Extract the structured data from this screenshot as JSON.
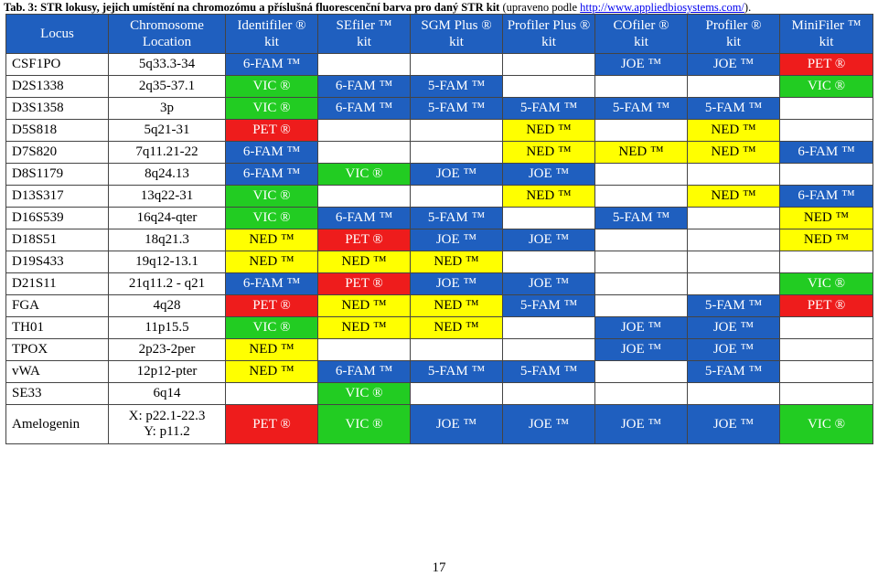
{
  "caption": {
    "bold": "Tab. 3: STR lokusy, jejich umístění na chromozómu a příslušná fluorescenční barva pro daný STR kit",
    "normal": " (upraveno podle ",
    "link": "http://www.appliedbiosystems.com/",
    "tail": ")."
  },
  "colors": {
    "FAM": "#1f5fbf",
    "JOE": "#1f5fbf",
    "VIC": "#22cc22",
    "NED": "#ffff00",
    "PET": "#ee1c1c",
    "header": "#1f5fbf"
  },
  "headers": {
    "locus": "Locus",
    "location": [
      "Chromosome",
      "Location"
    ],
    "kits": [
      [
        "Identifiler ®",
        "kit"
      ],
      [
        "SEfiler ™",
        "kit"
      ],
      [
        "SGM Plus ®",
        "kit"
      ],
      [
        "Profiler Plus ®",
        "kit"
      ],
      [
        "COfiler ®",
        "kit"
      ],
      [
        "Profiler ®",
        "kit"
      ],
      [
        "MiniFiler ™",
        "kit"
      ]
    ]
  },
  "rows": [
    {
      "locus": "CSF1PO",
      "location": [
        "5q33.3-34"
      ],
      "cells": [
        "6-FAM ™",
        "",
        "",
        "",
        "JOE ™",
        "JOE ™",
        "PET ®"
      ]
    },
    {
      "locus": "D2S1338",
      "location": [
        "2q35-37.1"
      ],
      "cells": [
        "VIC ®",
        "6-FAM ™",
        "5-FAM ™",
        "",
        "",
        "",
        "VIC ®"
      ]
    },
    {
      "locus": "D3S1358",
      "location": [
        "3p"
      ],
      "cells": [
        "VIC ®",
        "6-FAM ™",
        "5-FAM ™",
        "5-FAM ™",
        "5-FAM ™",
        "5-FAM ™",
        ""
      ]
    },
    {
      "locus": "D5S818",
      "location": [
        "5q21-31"
      ],
      "cells": [
        "PET ®",
        "",
        "",
        "NED ™",
        "",
        "NED ™",
        ""
      ]
    },
    {
      "locus": "D7S820",
      "location": [
        "7q11.21-22"
      ],
      "cells": [
        "6-FAM ™",
        "",
        "",
        "NED ™",
        "NED ™",
        "NED ™",
        "6-FAM ™"
      ]
    },
    {
      "locus": "D8S1179",
      "location": [
        "8q24.13"
      ],
      "cells": [
        "6-FAM ™",
        "VIC ®",
        "JOE ™",
        "JOE ™",
        "",
        "",
        ""
      ]
    },
    {
      "locus": "D13S317",
      "location": [
        "13q22-31"
      ],
      "cells": [
        "VIC ®",
        "",
        "",
        "NED ™",
        "",
        "NED ™",
        "6-FAM ™"
      ]
    },
    {
      "locus": "D16S539",
      "location": [
        "16q24-qter"
      ],
      "cells": [
        "VIC ®",
        "6-FAM ™",
        "5-FAM ™",
        "",
        "5-FAM ™",
        "",
        "NED ™"
      ]
    },
    {
      "locus": "D18S51",
      "location": [
        "18q21.3"
      ],
      "cells": [
        "NED ™",
        "PET ®",
        "JOE ™",
        "JOE ™",
        "",
        "",
        "NED ™"
      ]
    },
    {
      "locus": "D19S433",
      "location": [
        "19q12-13.1"
      ],
      "cells": [
        "NED ™",
        "NED ™",
        "NED ™",
        "",
        "",
        "",
        ""
      ]
    },
    {
      "locus": "D21S11",
      "location": [
        "21q11.2 - q21"
      ],
      "cells": [
        "6-FAM ™",
        "PET ®",
        "JOE ™",
        "JOE ™",
        "",
        "",
        "VIC ®"
      ]
    },
    {
      "locus": "FGA",
      "location": [
        "4q28"
      ],
      "cells": [
        "PET ®",
        "NED ™",
        "NED ™",
        "5-FAM ™",
        "",
        "5-FAM ™",
        "PET ®"
      ]
    },
    {
      "locus": "TH01",
      "location": [
        "11p15.5"
      ],
      "cells": [
        "VIC ®",
        "NED ™",
        "NED ™",
        "",
        "JOE ™",
        "JOE ™",
        ""
      ]
    },
    {
      "locus": "TPOX",
      "location": [
        "2p23-2per"
      ],
      "cells": [
        "NED ™",
        "",
        "",
        "",
        "JOE ™",
        "JOE ™",
        ""
      ]
    },
    {
      "locus": "vWA",
      "location": [
        "12p12-pter"
      ],
      "cells": [
        "NED ™",
        "6-FAM ™",
        "5-FAM ™",
        "5-FAM ™",
        "",
        "5-FAM ™",
        ""
      ]
    },
    {
      "locus": "SE33",
      "location": [
        "6q14"
      ],
      "cells": [
        "",
        "VIC ®",
        "",
        "",
        "",
        "",
        ""
      ]
    },
    {
      "locus": "Amelogenin",
      "location": [
        "X: p22.1-22.3",
        "Y: p11.2"
      ],
      "cells": [
        "PET ®",
        "VIC ®",
        "JOE ™",
        "JOE ™",
        "JOE ™",
        "JOE ™",
        "VIC ®"
      ]
    }
  ],
  "page_number": "17"
}
